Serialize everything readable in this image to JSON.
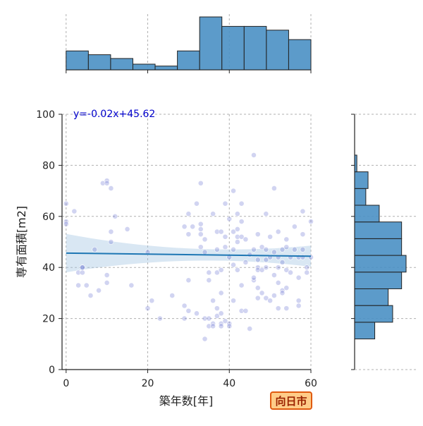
{
  "city_label": "向日市",
  "chart_data": {
    "type": "scatter",
    "xlabel": "築年数[年]",
    "ylabel": "専有面積[m2]",
    "xlim": [
      -1,
      60
    ],
    "ylim": [
      0,
      100
    ],
    "xticks": [
      0,
      20,
      40,
      60
    ],
    "yticks": [
      0,
      20,
      40,
      60,
      80,
      100
    ],
    "grid": true,
    "regression": {
      "label": "y=-0.02x+45.62",
      "slope": -0.02,
      "intercept": 45.62
    },
    "points": [
      [
        0,
        65
      ],
      [
        0,
        58
      ],
      [
        0,
        57
      ],
      [
        2,
        62
      ],
      [
        3,
        38
      ],
      [
        3,
        33
      ],
      [
        4,
        40
      ],
      [
        4,
        40
      ],
      [
        4,
        38
      ],
      [
        5,
        33
      ],
      [
        6,
        29
      ],
      [
        7,
        47
      ],
      [
        8,
        31
      ],
      [
        9,
        73
      ],
      [
        10,
        74
      ],
      [
        10,
        73
      ],
      [
        10,
        37
      ],
      [
        10,
        34
      ],
      [
        11,
        71
      ],
      [
        11,
        54
      ],
      [
        11,
        50
      ],
      [
        12,
        60
      ],
      [
        15,
        55
      ],
      [
        16,
        33
      ],
      [
        20,
        46
      ],
      [
        20,
        24
      ],
      [
        21,
        27
      ],
      [
        23,
        20
      ],
      [
        26,
        29
      ],
      [
        29,
        56
      ],
      [
        29,
        25
      ],
      [
        29,
        20
      ],
      [
        30,
        61
      ],
      [
        30,
        53
      ],
      [
        30,
        35
      ],
      [
        30,
        23
      ],
      [
        31,
        56
      ],
      [
        32,
        65
      ],
      [
        32,
        22
      ],
      [
        33,
        73
      ],
      [
        33,
        57
      ],
      [
        33,
        55
      ],
      [
        33,
        53
      ],
      [
        33,
        48
      ],
      [
        34,
        51
      ],
      [
        34,
        46
      ],
      [
        34,
        20
      ],
      [
        34,
        12
      ],
      [
        35,
        38
      ],
      [
        35,
        35
      ],
      [
        35,
        17
      ],
      [
        35,
        20
      ],
      [
        36,
        61
      ],
      [
        36,
        27
      ],
      [
        36,
        18
      ],
      [
        36,
        17
      ],
      [
        37,
        54
      ],
      [
        37,
        47
      ],
      [
        37,
        38
      ],
      [
        37,
        24
      ],
      [
        37,
        21
      ],
      [
        38,
        54
      ],
      [
        38,
        39
      ],
      [
        38,
        30
      ],
      [
        38,
        22
      ],
      [
        38,
        18
      ],
      [
        38,
        17
      ],
      [
        39,
        65
      ],
      [
        39,
        52
      ],
      [
        39,
        48
      ],
      [
        39,
        19
      ],
      [
        40,
        59
      ],
      [
        40,
        44
      ],
      [
        40,
        18
      ],
      [
        40,
        17
      ],
      [
        41,
        70
      ],
      [
        41,
        54
      ],
      [
        41,
        47
      ],
      [
        41,
        41
      ],
      [
        41,
        27
      ],
      [
        42,
        61
      ],
      [
        42,
        55
      ],
      [
        42,
        52
      ],
      [
        42,
        50
      ],
      [
        42,
        39
      ],
      [
        43,
        65
      ],
      [
        43,
        58
      ],
      [
        43,
        52
      ],
      [
        43,
        33
      ],
      [
        43,
        23
      ],
      [
        44,
        51
      ],
      [
        44,
        42
      ],
      [
        44,
        23
      ],
      [
        45,
        45
      ],
      [
        45,
        16
      ],
      [
        46,
        84
      ],
      [
        46,
        47
      ],
      [
        46,
        35
      ],
      [
        46,
        36
      ],
      [
        47,
        53
      ],
      [
        47,
        43
      ],
      [
        47,
        40
      ],
      [
        47,
        39
      ],
      [
        47,
        32
      ],
      [
        47,
        28
      ],
      [
        48,
        48
      ],
      [
        48,
        39
      ],
      [
        48,
        30
      ],
      [
        49,
        61
      ],
      [
        49,
        47
      ],
      [
        49,
        43
      ],
      [
        49,
        40
      ],
      [
        49,
        28
      ],
      [
        50,
        52
      ],
      [
        50,
        44
      ],
      [
        50,
        27
      ],
      [
        51,
        71
      ],
      [
        51,
        46
      ],
      [
        51,
        37
      ],
      [
        51,
        29
      ],
      [
        52,
        54
      ],
      [
        52,
        44
      ],
      [
        52,
        40
      ],
      [
        52,
        34
      ],
      [
        52,
        24
      ],
      [
        53,
        47
      ],
      [
        53,
        42
      ],
      [
        53,
        31
      ],
      [
        53,
        30
      ],
      [
        54,
        51
      ],
      [
        54,
        48
      ],
      [
        54,
        39
      ],
      [
        54,
        32
      ],
      [
        54,
        24
      ],
      [
        55,
        44
      ],
      [
        55,
        38
      ],
      [
        56,
        56
      ],
      [
        56,
        47
      ],
      [
        57,
        44
      ],
      [
        57,
        36
      ],
      [
        57,
        27
      ],
      [
        57,
        25
      ],
      [
        58,
        62
      ],
      [
        58,
        53
      ],
      [
        58,
        47
      ],
      [
        58,
        44
      ],
      [
        59,
        40
      ],
      [
        59,
        38
      ],
      [
        60,
        58
      ],
      [
        60,
        44
      ]
    ]
  }
}
